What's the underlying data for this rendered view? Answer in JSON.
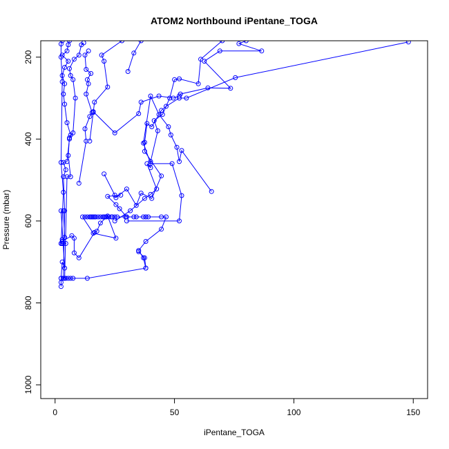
{
  "chart_data": {
    "type": "scatter",
    "title": "ATOM2 Northbound iPentane_TOGA",
    "xlabel": "iPentane_TOGA",
    "ylabel": "Pressure (mbar)",
    "xlim": [
      0,
      150
    ],
    "ylim": [
      1000,
      160
    ],
    "y_reversed": true,
    "x_ticks": [
      0,
      50,
      100,
      150
    ],
    "y_ticks": [
      200,
      400,
      600,
      800,
      1000
    ],
    "series_color": "#0000ff",
    "marker": "open-circle",
    "connected": true,
    "series": [
      {
        "points": [
          [
            2.5,
            740
          ],
          [
            3.5,
            740
          ],
          [
            4.5,
            740
          ],
          [
            5.5,
            740
          ],
          [
            6.5,
            740
          ],
          [
            7.5,
            740
          ],
          [
            13.5,
            740
          ],
          [
            38,
            715
          ],
          [
            37,
            690
          ],
          [
            35,
            672
          ],
          [
            38,
            650
          ],
          [
            44.5,
            620
          ],
          [
            46.5,
            590
          ],
          [
            44.5,
            590
          ],
          [
            39,
            590
          ],
          [
            38,
            590
          ],
          [
            37,
            590
          ],
          [
            34,
            590
          ],
          [
            33,
            590
          ],
          [
            30,
            590
          ],
          [
            29.5,
            590
          ],
          [
            26,
            590
          ],
          [
            25,
            590
          ],
          [
            24,
            590
          ],
          [
            23.5,
            590
          ],
          [
            22.5,
            590
          ],
          [
            21.5,
            590
          ],
          [
            21,
            590
          ],
          [
            20.5,
            590
          ],
          [
            20,
            590
          ],
          [
            19,
            590
          ],
          [
            18,
            590
          ],
          [
            17,
            590
          ],
          [
            16.5,
            590
          ],
          [
            16,
            590
          ],
          [
            15.5,
            590
          ],
          [
            15,
            590
          ],
          [
            14.5,
            590
          ],
          [
            13.5,
            590
          ],
          [
            12.5,
            590
          ],
          [
            11.5,
            590
          ],
          [
            16,
            630
          ],
          [
            25.5,
            642
          ],
          [
            22,
            588
          ],
          [
            19,
            605
          ],
          [
            17.5,
            625
          ],
          [
            16.5,
            628
          ],
          [
            10,
            690
          ],
          [
            8,
            678
          ],
          [
            8,
            642
          ],
          [
            7,
            636
          ],
          [
            3,
            650
          ],
          [
            2.5,
            655
          ],
          [
            3,
            655
          ],
          [
            3.5,
            655
          ],
          [
            4.5,
            655
          ],
          [
            3,
            645
          ],
          [
            4,
            640
          ],
          [
            3.5,
            575
          ],
          [
            2.5,
            575
          ],
          [
            4,
            715
          ],
          [
            3,
            700
          ],
          [
            2.5,
            740
          ],
          [
            2.5,
            750
          ],
          [
            2.5,
            760
          ]
        ]
      },
      {
        "points": [
          [
            2.5,
            655
          ],
          [
            3.5,
            530
          ],
          [
            2.5,
            457
          ],
          [
            3,
            260
          ],
          [
            2.5,
            200
          ],
          [
            2.5,
            168
          ],
          [
            3,
            160
          ]
        ]
      },
      {
        "points": [
          [
            3.5,
            740
          ],
          [
            4,
            575
          ],
          [
            3.5,
            492
          ],
          [
            4.5,
            475
          ],
          [
            3.5,
            457
          ],
          [
            5,
            455
          ],
          [
            6,
            400
          ],
          [
            6.5,
            390
          ],
          [
            5,
            360
          ],
          [
            4,
            315
          ],
          [
            3.5,
            290
          ],
          [
            4,
            265
          ],
          [
            3,
            245
          ],
          [
            4,
            225
          ],
          [
            5.5,
            210
          ],
          [
            3,
            195
          ],
          [
            5,
            185
          ],
          [
            5.5,
            170
          ],
          [
            6,
            160
          ]
        ]
      },
      {
        "points": [
          [
            4,
            740
          ],
          [
            5,
            492
          ],
          [
            6.5,
            492
          ],
          [
            5.5,
            440
          ],
          [
            6,
            397
          ],
          [
            7.5,
            385
          ],
          [
            8.5,
            300
          ],
          [
            7.5,
            255
          ],
          [
            6.5,
            245
          ],
          [
            6,
            228
          ],
          [
            8,
            205
          ],
          [
            10,
            195
          ],
          [
            11,
            170
          ],
          [
            12,
            165
          ]
        ]
      },
      {
        "points": [
          [
            10,
            508
          ],
          [
            13,
            405
          ],
          [
            12.5,
            375
          ],
          [
            14.5,
            345
          ],
          [
            15.5,
            335
          ],
          [
            13,
            290
          ],
          [
            14,
            265
          ],
          [
            13.5,
            255
          ],
          [
            15,
            240
          ],
          [
            13,
            230
          ],
          [
            12.5,
            195
          ],
          [
            14,
            185
          ]
        ]
      },
      {
        "points": [
          [
            14.5,
            405
          ],
          [
            16,
            335
          ],
          [
            16.5,
            310
          ],
          [
            22,
            273
          ],
          [
            20.5,
            210
          ],
          [
            19.5,
            195
          ],
          [
            28,
            160
          ]
        ]
      },
      {
        "points": [
          [
            16,
            333
          ],
          [
            25,
            385
          ],
          [
            35,
            338
          ],
          [
            36,
            310
          ],
          [
            43.5,
            295
          ],
          [
            49.5,
            300
          ],
          [
            52,
            295
          ],
          [
            52.5,
            290
          ],
          [
            64,
            275
          ],
          [
            73.5,
            276
          ],
          [
            62.5,
            210
          ],
          [
            69,
            185
          ],
          [
            86.5,
            185
          ],
          [
            77,
            167
          ],
          [
            80,
            160
          ]
        ]
      },
      {
        "points": [
          [
            20.5,
            485
          ],
          [
            25,
            537
          ],
          [
            25.5,
            543
          ],
          [
            30,
            522
          ],
          [
            34,
            562
          ],
          [
            36,
            532
          ],
          [
            40.5,
            545
          ],
          [
            44.5,
            490
          ],
          [
            37.5,
            430
          ],
          [
            37.5,
            408
          ],
          [
            38.5,
            362
          ],
          [
            40.5,
            370
          ],
          [
            44.5,
            330
          ],
          [
            46.5,
            320
          ],
          [
            52,
            300
          ],
          [
            55,
            300
          ],
          [
            75.5,
            250
          ],
          [
            148,
            163
          ]
        ]
      },
      {
        "points": [
          [
            27.5,
            537
          ],
          [
            22,
            540
          ],
          [
            25.5,
            560
          ],
          [
            27,
            570
          ],
          [
            30,
            590
          ],
          [
            38,
            590
          ]
        ]
      },
      {
        "points": [
          [
            25,
            600
          ],
          [
            31.5,
            575
          ],
          [
            37.5,
            545
          ],
          [
            40,
            535
          ],
          [
            42.5,
            522
          ],
          [
            38.5,
            460
          ],
          [
            40,
            470
          ],
          [
            40,
            455
          ],
          [
            43,
            380
          ],
          [
            41.5,
            355
          ],
          [
            45,
            340
          ],
          [
            48,
            300
          ],
          [
            50,
            255
          ],
          [
            52,
            253
          ],
          [
            60,
            265
          ],
          [
            61,
            205
          ],
          [
            70,
            160
          ]
        ]
      },
      {
        "points": [
          [
            65.5,
            528
          ],
          [
            53,
            428
          ],
          [
            52,
            455
          ],
          [
            51,
            420
          ],
          [
            48.5,
            390
          ],
          [
            47.5,
            370
          ],
          [
            43.5,
            340
          ],
          [
            40,
            295
          ],
          [
            37,
            410
          ],
          [
            40,
            460
          ],
          [
            49,
            460
          ],
          [
            53,
            538
          ],
          [
            52,
            600
          ],
          [
            30,
            600
          ]
        ]
      },
      {
        "points": [
          [
            30.5,
            235
          ],
          [
            33,
            190
          ],
          [
            36,
            160
          ]
        ]
      },
      {
        "points": [
          [
            35,
            675
          ],
          [
            37.5,
            690
          ],
          [
            38,
            715
          ]
        ]
      }
    ]
  }
}
